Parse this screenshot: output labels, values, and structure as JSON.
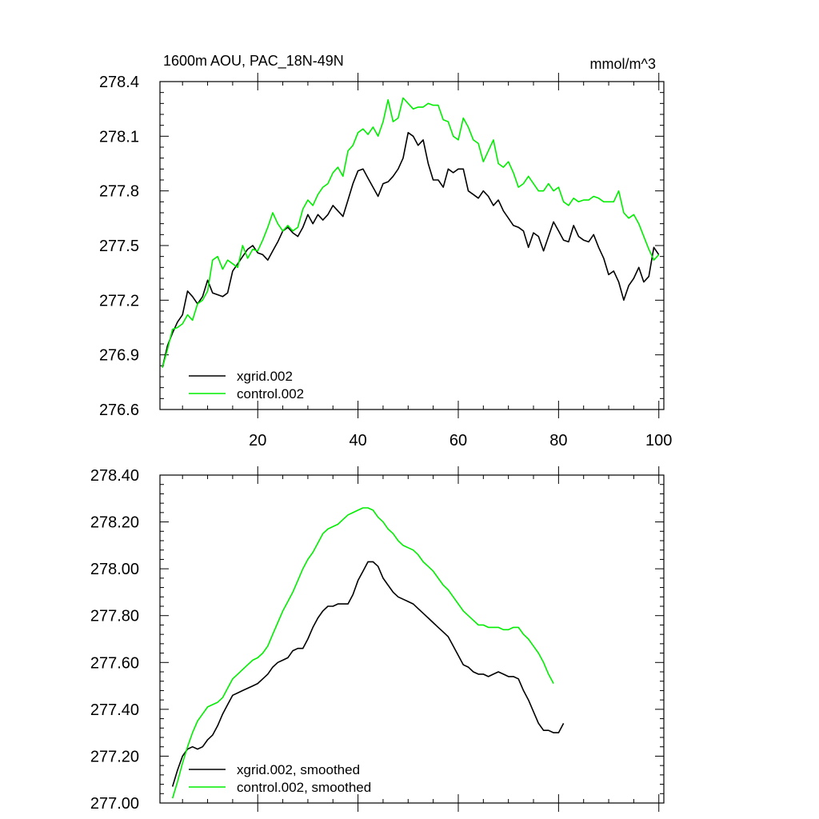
{
  "figure": {
    "title_left": "1600m AOU, PAC_18N-49N",
    "title_right": "mmol/m^3"
  },
  "chart_data": [
    {
      "type": "line",
      "title": "1600m AOU, PAC_18N-49N",
      "units": "mmol/m^3",
      "xlim": [
        0.5,
        101
      ],
      "ylim": [
        276.6,
        278.4
      ],
      "x_ticks": [
        20,
        40,
        60,
        80,
        100
      ],
      "x_tick_labels": [
        "20",
        "40",
        "60",
        "80",
        "100"
      ],
      "y_ticks": [
        276.6,
        276.9,
        277.2,
        277.5,
        277.8,
        278.1,
        278.4
      ],
      "y_tick_labels": [
        "276.6",
        "276.9",
        "277.2",
        "277.5",
        "277.8",
        "278.1",
        "278.4"
      ],
      "legend_position": "bottom-left",
      "series": [
        {
          "name": "xgrid.002",
          "color": "#000000",
          "x_start": 1,
          "values": [
            276.83,
            276.95,
            277.02,
            277.08,
            277.12,
            277.25,
            277.22,
            277.18,
            277.22,
            277.31,
            277.24,
            277.23,
            277.22,
            277.24,
            277.36,
            277.4,
            277.44,
            277.48,
            277.5,
            277.46,
            277.45,
            277.42,
            277.47,
            277.52,
            277.58,
            277.6,
            277.57,
            277.55,
            277.6,
            277.67,
            277.62,
            277.67,
            277.64,
            277.67,
            277.72,
            277.69,
            277.66,
            277.75,
            277.84,
            277.91,
            277.92,
            277.87,
            277.82,
            277.77,
            277.84,
            277.85,
            277.88,
            277.92,
            277.98,
            278.12,
            278.1,
            278.05,
            278.08,
            277.95,
            277.86,
            277.86,
            277.82,
            277.92,
            277.9,
            277.92,
            277.92,
            277.8,
            277.78,
            277.76,
            277.8,
            277.77,
            277.72,
            277.75,
            277.69,
            277.65,
            277.61,
            277.6,
            277.58,
            277.49,
            277.57,
            277.55,
            277.47,
            277.55,
            277.63,
            277.58,
            277.53,
            277.52,
            277.61,
            277.55,
            277.53,
            277.52,
            277.56,
            277.49,
            277.43,
            277.34,
            277.36,
            277.3,
            277.2,
            277.28,
            277.32,
            277.38,
            277.3,
            277.33,
            277.49,
            277.45
          ]
        },
        {
          "name": "control.002",
          "color": "#00ee00",
          "x_start": 1,
          "values": [
            276.83,
            276.93,
            277.04,
            277.05,
            277.07,
            277.12,
            277.09,
            277.18,
            277.2,
            277.25,
            277.42,
            277.44,
            277.37,
            277.42,
            277.4,
            277.38,
            277.5,
            277.43,
            277.48,
            277.47,
            277.53,
            277.6,
            277.68,
            277.62,
            277.58,
            277.61,
            277.58,
            277.6,
            277.7,
            277.75,
            277.72,
            277.78,
            277.82,
            277.84,
            277.9,
            277.93,
            277.88,
            278.02,
            278.05,
            278.12,
            278.14,
            278.11,
            278.15,
            278.1,
            278.18,
            278.3,
            278.18,
            278.2,
            278.31,
            278.28,
            278.25,
            278.26,
            278.26,
            278.28,
            278.27,
            278.27,
            278.19,
            278.18,
            278.1,
            278.08,
            278.2,
            278.15,
            278.08,
            278.06,
            277.96,
            278.02,
            278.08,
            277.95,
            277.93,
            277.96,
            277.9,
            277.82,
            277.84,
            277.88,
            277.84,
            277.8,
            277.8,
            277.84,
            277.8,
            277.82,
            277.74,
            277.72,
            277.76,
            277.74,
            277.75,
            277.75,
            277.77,
            277.76,
            277.74,
            277.74,
            277.74,
            277.8,
            277.68,
            277.65,
            277.67,
            277.62,
            277.55,
            277.48,
            277.42,
            277.45
          ]
        }
      ]
    },
    {
      "type": "line",
      "xlim": [
        0.5,
        101
      ],
      "ylim": [
        277.0,
        278.4
      ],
      "x_ticks": [
        20,
        40,
        60,
        80,
        100
      ],
      "x_tick_labels": [
        "",
        "",
        "",
        "",
        ""
      ],
      "y_ticks": [
        277.0,
        277.2,
        277.4,
        277.6,
        277.8,
        278.0,
        278.2,
        278.4
      ],
      "y_tick_labels": [
        "277.00",
        "277.20",
        "277.40",
        "277.60",
        "277.80",
        "278.00",
        "278.20",
        "278.40"
      ],
      "legend_position": "bottom-left",
      "series": [
        {
          "name": "xgrid.002, smoothed",
          "color": "#000000",
          "x_start": 3,
          "values": [
            277.07,
            277.14,
            277.2,
            277.23,
            277.24,
            277.23,
            277.24,
            277.27,
            277.29,
            277.33,
            277.38,
            277.42,
            277.46,
            277.47,
            277.48,
            277.49,
            277.5,
            277.51,
            277.53,
            277.55,
            277.58,
            277.6,
            277.61,
            277.62,
            277.65,
            277.66,
            277.66,
            277.7,
            277.75,
            277.79,
            277.82,
            277.84,
            277.84,
            277.85,
            277.85,
            277.85,
            277.89,
            277.95,
            277.99,
            278.03,
            278.03,
            278.01,
            277.96,
            277.93,
            277.9,
            277.88,
            277.87,
            277.86,
            277.85,
            277.83,
            277.81,
            277.79,
            277.77,
            277.75,
            277.73,
            277.71,
            277.67,
            277.63,
            277.59,
            277.58,
            277.56,
            277.55,
            277.55,
            277.54,
            277.55,
            277.56,
            277.55,
            277.54,
            277.54,
            277.53,
            277.48,
            277.44,
            277.39,
            277.34,
            277.31,
            277.31,
            277.3,
            277.3,
            277.34
          ]
        },
        {
          "name": "control.002, smoothed",
          "color": "#00ee00",
          "x_start": 3,
          "values": [
            277.02,
            277.09,
            277.17,
            277.24,
            277.3,
            277.35,
            277.38,
            277.41,
            277.42,
            277.43,
            277.45,
            277.49,
            277.53,
            277.55,
            277.57,
            277.59,
            277.61,
            277.62,
            277.64,
            277.67,
            277.72,
            277.77,
            277.82,
            277.86,
            277.9,
            277.95,
            278.0,
            278.04,
            278.07,
            278.11,
            278.15,
            278.17,
            278.18,
            278.19,
            278.21,
            278.23,
            278.24,
            278.25,
            278.26,
            278.26,
            278.25,
            278.22,
            278.2,
            278.17,
            278.15,
            278.12,
            278.1,
            278.09,
            278.08,
            278.06,
            278.03,
            278.01,
            277.99,
            277.96,
            277.93,
            277.91,
            277.88,
            277.85,
            277.82,
            277.8,
            277.78,
            277.76,
            277.76,
            277.75,
            277.75,
            277.75,
            277.74,
            277.74,
            277.75,
            277.75,
            277.72,
            277.7,
            277.67,
            277.64,
            277.6,
            277.55,
            277.51
          ]
        }
      ]
    }
  ]
}
